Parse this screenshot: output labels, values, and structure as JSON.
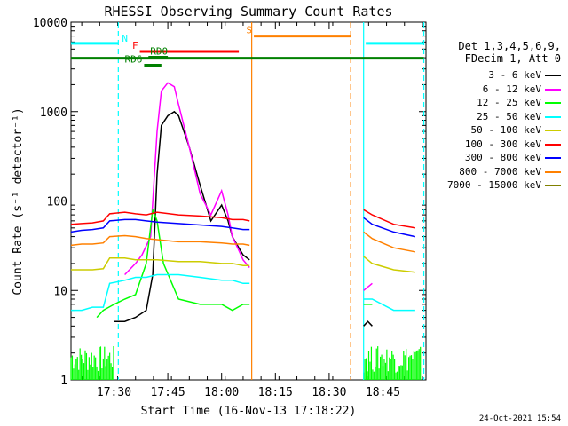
{
  "chart_data": {
    "type": "line",
    "title": "RHESSI Observing Summary Count Rates",
    "xlabel": "Start Time (16-Nov-13 17:18:22)",
    "ylabel": "Count Rate (s⁻¹ detector⁻¹)",
    "xlim_min": [
      17.3,
      18.95
    ],
    "ylim": [
      1,
      10000
    ],
    "yscale": "log",
    "x_ticks": [
      "17:30",
      "17:45",
      "18:00",
      "18:15",
      "18:30",
      "18:45"
    ],
    "x_ticks_min": [
      17.5,
      17.75,
      18.0,
      18.25,
      18.5,
      18.75
    ],
    "y_ticks": [
      "1",
      "10",
      "100",
      "1000",
      "10000"
    ],
    "y_ticks_val": [
      1,
      10,
      100,
      1000,
      10000
    ],
    "legend_header": [
      "Det 1,3,4,5,6,9,",
      "FDecim 1, Att 0"
    ],
    "series": [
      {
        "name": "3 - 6 keV",
        "color": "#000000",
        "points": [
          [
            17.5,
            4.5
          ],
          [
            17.55,
            4.5
          ],
          [
            17.6,
            5
          ],
          [
            17.65,
            6
          ],
          [
            17.68,
            15
          ],
          [
            17.7,
            200
          ],
          [
            17.72,
            700
          ],
          [
            17.75,
            900
          ],
          [
            17.78,
            1000
          ],
          [
            17.8,
            900
          ],
          [
            17.85,
            400
          ],
          [
            17.9,
            150
          ],
          [
            17.95,
            60
          ],
          [
            18.0,
            90
          ],
          [
            18.03,
            60
          ],
          [
            18.05,
            40
          ],
          [
            18.08,
            30
          ],
          [
            18.1,
            25
          ],
          [
            18.13,
            22
          ],
          null,
          [
            18.66,
            4
          ],
          [
            18.68,
            4.5
          ],
          [
            18.7,
            4
          ]
        ]
      },
      {
        "name": "6 - 12 keV",
        "color": "#ff00ff",
        "points": [
          [
            17.55,
            15
          ],
          [
            17.6,
            20
          ],
          [
            17.63,
            25
          ],
          [
            17.67,
            40
          ],
          [
            17.7,
            600
          ],
          [
            17.72,
            1700
          ],
          [
            17.75,
            2100
          ],
          [
            17.78,
            1900
          ],
          [
            17.8,
            1200
          ],
          [
            17.85,
            400
          ],
          [
            17.9,
            120
          ],
          [
            17.95,
            70
          ],
          [
            18.0,
            130
          ],
          [
            18.03,
            70
          ],
          [
            18.05,
            40
          ],
          [
            18.08,
            28
          ],
          [
            18.1,
            22
          ],
          [
            18.13,
            18
          ],
          null,
          [
            18.66,
            10
          ],
          [
            18.7,
            12
          ]
        ]
      },
      {
        "name": "12 - 25 keV",
        "color": "#00ff00",
        "points": [
          [
            17.42,
            5
          ],
          [
            17.45,
            6
          ],
          [
            17.5,
            7
          ],
          [
            17.55,
            8
          ],
          [
            17.6,
            9
          ],
          [
            17.65,
            20
          ],
          [
            17.68,
            80
          ],
          [
            17.7,
            60
          ],
          [
            17.73,
            20
          ],
          [
            17.8,
            8
          ],
          [
            17.9,
            7
          ],
          [
            18.0,
            7
          ],
          [
            18.05,
            6
          ],
          [
            18.1,
            7
          ],
          [
            18.13,
            7
          ],
          null,
          [
            18.66,
            7
          ],
          [
            18.7,
            7
          ]
        ]
      },
      {
        "name": "25 - 50 keV",
        "color": "#00ffff",
        "points": [
          [
            17.3,
            6
          ],
          [
            17.35,
            6
          ],
          [
            17.4,
            6.5
          ],
          [
            17.45,
            6.5
          ],
          [
            17.48,
            12
          ],
          [
            17.55,
            13
          ],
          [
            17.6,
            14
          ],
          [
            17.65,
            14
          ],
          [
            17.7,
            15
          ],
          [
            17.8,
            15
          ],
          [
            17.9,
            14
          ],
          [
            18.0,
            13
          ],
          [
            18.05,
            13
          ],
          [
            18.1,
            12
          ],
          [
            18.13,
            12
          ],
          null,
          [
            18.66,
            8
          ],
          [
            18.7,
            8
          ],
          [
            18.8,
            6
          ],
          [
            18.9,
            6
          ]
        ]
      },
      {
        "name": "50 - 100 keV",
        "color": "#cccc00",
        "points": [
          [
            17.3,
            17
          ],
          [
            17.35,
            17
          ],
          [
            17.4,
            17
          ],
          [
            17.45,
            17.5
          ],
          [
            17.48,
            23
          ],
          [
            17.55,
            23
          ],
          [
            17.6,
            22
          ],
          [
            17.65,
            22
          ],
          [
            17.7,
            22
          ],
          [
            17.8,
            21
          ],
          [
            17.9,
            21
          ],
          [
            18.0,
            20
          ],
          [
            18.05,
            20
          ],
          [
            18.1,
            19
          ],
          [
            18.13,
            19
          ],
          null,
          [
            18.66,
            24
          ],
          [
            18.7,
            20
          ],
          [
            18.8,
            17
          ],
          [
            18.9,
            16
          ]
        ]
      },
      {
        "name": "100 - 300 keV",
        "color": "#ff0000",
        "points": [
          [
            17.3,
            55
          ],
          [
            17.35,
            56
          ],
          [
            17.4,
            57
          ],
          [
            17.45,
            60
          ],
          [
            17.48,
            72
          ],
          [
            17.55,
            75
          ],
          [
            17.6,
            72
          ],
          [
            17.65,
            70
          ],
          [
            17.7,
            75
          ],
          [
            17.8,
            70
          ],
          [
            17.9,
            68
          ],
          [
            18.0,
            65
          ],
          [
            18.05,
            62
          ],
          [
            18.1,
            62
          ],
          [
            18.13,
            60
          ],
          null,
          [
            18.66,
            80
          ],
          [
            18.7,
            70
          ],
          [
            18.8,
            55
          ],
          [
            18.9,
            50
          ]
        ]
      },
      {
        "name": "300 - 800 keV",
        "color": "#0000ff",
        "points": [
          [
            17.3,
            45
          ],
          [
            17.35,
            47
          ],
          [
            17.4,
            48
          ],
          [
            17.45,
            50
          ],
          [
            17.48,
            60
          ],
          [
            17.55,
            62
          ],
          [
            17.6,
            62
          ],
          [
            17.65,
            60
          ],
          [
            17.7,
            58
          ],
          [
            17.8,
            56
          ],
          [
            17.9,
            54
          ],
          [
            18.0,
            52
          ],
          [
            18.05,
            50
          ],
          [
            18.1,
            48
          ],
          [
            18.13,
            48
          ],
          null,
          [
            18.66,
            65
          ],
          [
            18.7,
            55
          ],
          [
            18.8,
            45
          ],
          [
            18.9,
            40
          ]
        ]
      },
      {
        "name": "800 - 7000 keV",
        "color": "#ff8000",
        "points": [
          [
            17.3,
            32
          ],
          [
            17.35,
            33
          ],
          [
            17.4,
            33
          ],
          [
            17.45,
            34
          ],
          [
            17.48,
            40
          ],
          [
            17.55,
            41
          ],
          [
            17.6,
            40
          ],
          [
            17.65,
            38
          ],
          [
            17.7,
            37
          ],
          [
            17.8,
            35
          ],
          [
            17.9,
            35
          ],
          [
            18.0,
            34
          ],
          [
            18.05,
            33
          ],
          [
            18.1,
            33
          ],
          [
            18.13,
            32
          ],
          null,
          [
            18.66,
            45
          ],
          [
            18.7,
            38
          ],
          [
            18.8,
            30
          ],
          [
            18.9,
            27
          ]
        ]
      },
      {
        "name": "7000 - 15000 keV",
        "color": "#808000",
        "points": []
      }
    ],
    "background": {
      "color": "#00ff00",
      "x": [
        17.3,
        17.5
      ],
      "level": 2
    },
    "background2": {
      "color": "#00ff00",
      "x": [
        18.66,
        18.93
      ],
      "level": 2
    },
    "flag_bars": [
      {
        "label": "N",
        "color": "#00ffff",
        "x": [
          17.3,
          17.52
        ],
        "level": 5800
      },
      {
        "label": "",
        "color": "#00ffff",
        "x": [
          18.67,
          18.94
        ],
        "level": 5800
      },
      {
        "label": "F",
        "color": "#ff0000",
        "x": [
          17.62,
          18.08
        ],
        "level": 4700
      },
      {
        "label": "RD0",
        "color": "#008000",
        "x": [
          17.66,
          17.75
        ],
        "level": 4050
      },
      {
        "label": "",
        "color": "#008000",
        "x": [
          17.3,
          18.94
        ],
        "level": 3950
      },
      {
        "label": "RD6",
        "color": "#008000",
        "x": [
          17.64,
          17.72
        ],
        "level": 3300
      },
      {
        "label": "S",
        "color": "#ff8000",
        "x": [
          18.15,
          18.6
        ],
        "level": 7000
      }
    ],
    "vlines": [
      {
        "x": 17.52,
        "color": "#00ffff",
        "dash": true
      },
      {
        "x": 18.14,
        "color": "#ff8000",
        "dash": false
      },
      {
        "x": 18.6,
        "color": "#ff8000",
        "dash": true
      },
      {
        "x": 18.66,
        "color": "#00ffff",
        "dash": false
      },
      {
        "x": 18.94,
        "color": "#00ffff",
        "dash": true
      }
    ],
    "footer": "24-Oct-2021 15:54"
  }
}
